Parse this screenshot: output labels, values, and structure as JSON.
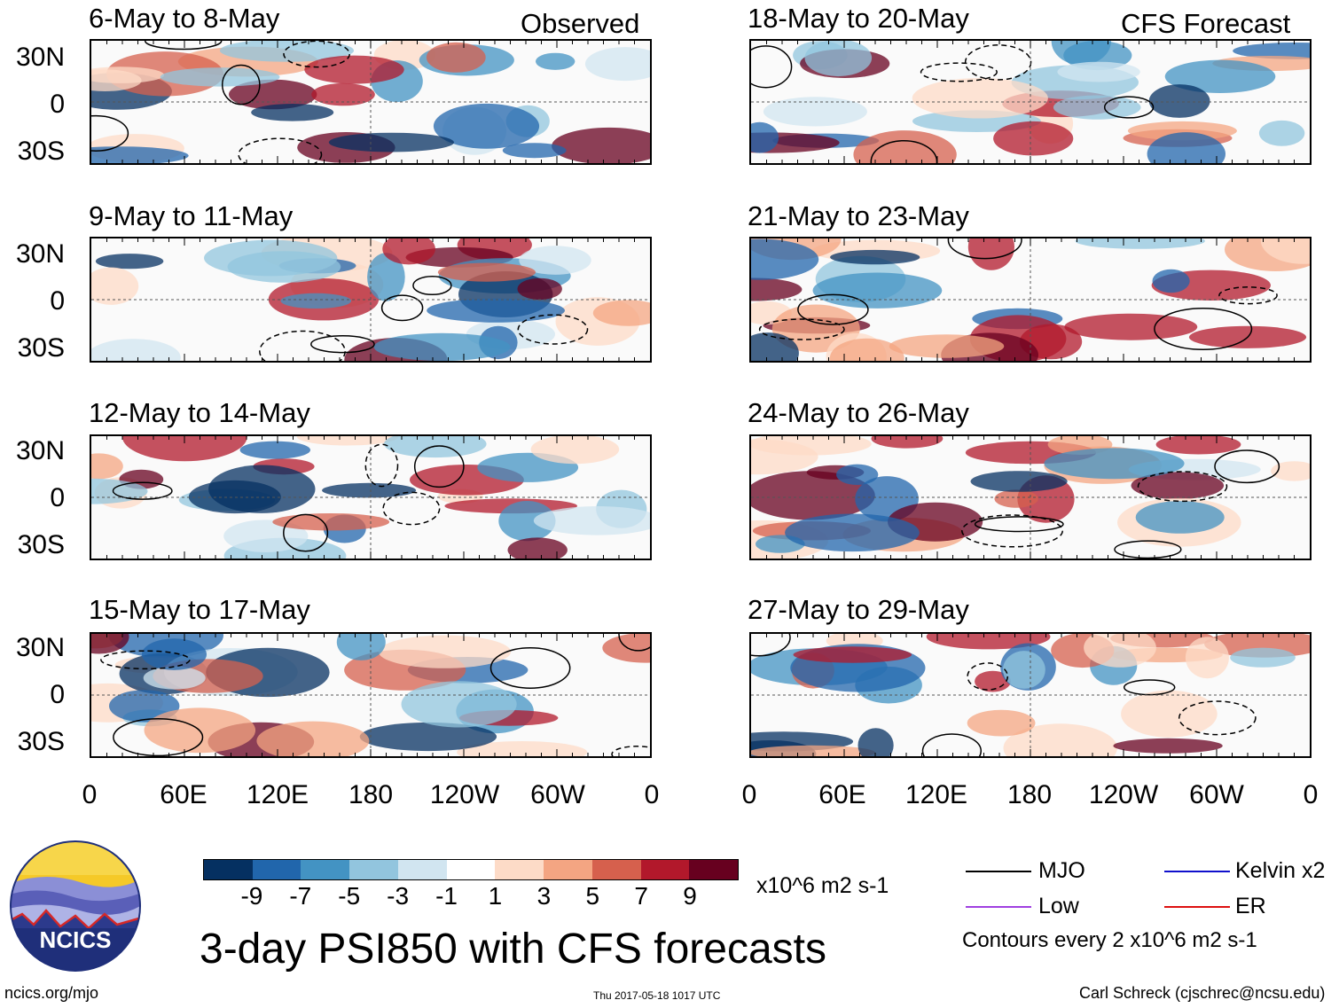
{
  "panels": {
    "left": [
      {
        "title": "6-May to 8-May",
        "tag": "Observed"
      },
      {
        "title": "9-May to 11-May",
        "tag": ""
      },
      {
        "title": "12-May to 14-May",
        "tag": ""
      },
      {
        "title": "15-May to 17-May",
        "tag": ""
      }
    ],
    "right": [
      {
        "title": "18-May to 20-May",
        "tag": "CFS Forecast"
      },
      {
        "title": "21-May to 23-May",
        "tag": ""
      },
      {
        "title": "24-May to 26-May",
        "tag": ""
      },
      {
        "title": "27-May to 29-May",
        "tag": ""
      }
    ]
  },
  "lat_labels": [
    "30N",
    "0",
    "30S"
  ],
  "lon_labels": [
    "0",
    "60E",
    "120E",
    "180",
    "120W",
    "60W",
    "0"
  ],
  "colorbar": {
    "ticks": [
      "-9",
      "-7",
      "-5",
      "-3",
      "-1",
      "1",
      "3",
      "5",
      "7",
      "9"
    ],
    "colors": [
      "#053061",
      "#2166ac",
      "#4393c3",
      "#92c5de",
      "#d1e5f0",
      "#ffffff",
      "#fddbc7",
      "#f4a582",
      "#d6604d",
      "#b2182b",
      "#67001f"
    ],
    "units": "x10^6 m2 s-1"
  },
  "title": "3-day PSI850 with CFS forecasts",
  "legend": {
    "mjo": "MJO",
    "kelvin": "Kelvin x2",
    "low": "Low",
    "er": "ER",
    "contours_note": "Contours every 2 x10^6 m2 s-1",
    "colors": {
      "mjo": "#000000",
      "kelvin": "#1010cc",
      "low": "#a040e0",
      "er": "#dd1111"
    }
  },
  "logo_text": "NCICS",
  "footer": {
    "left": "ncics.org/mjo",
    "center": "Thu 2017-05-18 1017 UTC",
    "right": "Carl Schreck (cjschrec@ncsu.edu)"
  }
}
